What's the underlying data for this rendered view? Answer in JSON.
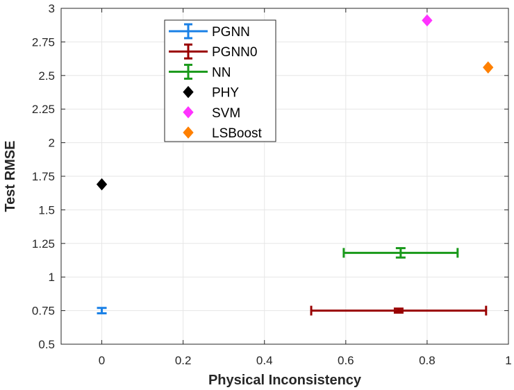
{
  "chart_data": {
    "type": "scatter",
    "xlabel": "Physical Inconsistency",
    "ylabel": "Test RMSE",
    "xlim": [
      -0.1,
      1
    ],
    "ylim": [
      0.5,
      3
    ],
    "xticks": [
      0,
      0.2,
      0.4,
      0.6,
      0.8,
      1
    ],
    "xtick_labels": [
      "0",
      "0.2",
      "0.4",
      "0.6",
      "0.8",
      "1"
    ],
    "yticks": [
      0.5,
      0.75,
      1,
      1.25,
      1.5,
      1.75,
      2,
      2.25,
      2.5,
      2.75,
      3
    ],
    "ytick_labels": [
      "0.5",
      "0.75",
      "1",
      "1.25",
      "1.5",
      "1.75",
      "2",
      "2.25",
      "2.5",
      "2.75",
      "3"
    ],
    "grid": true,
    "legend_position": "top-center",
    "series": [
      {
        "name": "PGNN",
        "marker": "errorbar",
        "color": "#1a80e6",
        "x": 0,
        "y": 0.75,
        "x_err": [
          0,
          0
        ],
        "y_err": [
          0.02,
          0.02
        ]
      },
      {
        "name": "PGNN0",
        "marker": "errorbar",
        "color": "#990000",
        "x": 0.73,
        "y": 0.75,
        "x_err": [
          0.215,
          0.215
        ],
        "y_err": [
          0.015,
          0.015
        ]
      },
      {
        "name": "NN",
        "marker": "errorbar",
        "color": "#19991a",
        "x": 0.735,
        "y": 1.18,
        "x_err": [
          0.14,
          0.14
        ],
        "y_err": [
          0.035,
          0.035
        ]
      },
      {
        "name": "PHY",
        "marker": "diamond",
        "color": "#000000",
        "x": 0,
        "y": 1.69
      },
      {
        "name": "SVM",
        "marker": "diamond",
        "color": "#ff33ff",
        "x": 0.8,
        "y": 2.91
      },
      {
        "name": "LSBoost",
        "marker": "diamond",
        "color": "#ff8000",
        "x": 0.95,
        "y": 2.56
      }
    ]
  }
}
